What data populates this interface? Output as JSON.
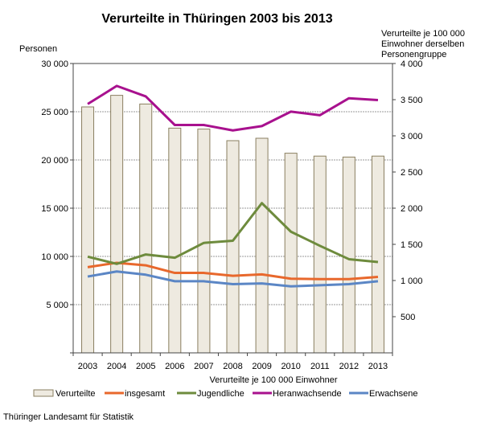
{
  "chart_data": {
    "type": "bar",
    "title": "Verurteilte in Thüringen 2003 bis 2013",
    "ylabel_left": "Personen",
    "ylabel_right": [
      "Verurteilte je 100 000",
      "Einwohner derselben",
      "Personengruppe"
    ],
    "xlabel": "Verurteilte je 100 000 Einwohner",
    "categories": [
      "2003",
      "2004",
      "2005",
      "2006",
      "2007",
      "2008",
      "2009",
      "2010",
      "2011",
      "2012",
      "2013"
    ],
    "ylim_left": [
      0,
      30000
    ],
    "yticks_left": [
      "5 000",
      "10 000",
      "15 000",
      "20 000",
      "25 000",
      "30 000"
    ],
    "yticks_left_values": [
      5000,
      10000,
      15000,
      20000,
      25000,
      30000
    ],
    "ylim_right": [
      0,
      4000
    ],
    "yticks_right": [
      "500",
      "1 000",
      "1 500",
      "2 000",
      "2 500",
      "3 000",
      "3 500",
      "4 000"
    ],
    "yticks_right_values": [
      500,
      1000,
      1500,
      2000,
      2500,
      3000,
      3500,
      4000
    ],
    "grid": true,
    "legend_placement": "bottom",
    "bars": {
      "name": "Verurteilte",
      "axis": "left",
      "color": "#eeeae0",
      "stroke": "#8a7f60",
      "values": [
        25500,
        26700,
        25800,
        23300,
        23200,
        22000,
        22250,
        20700,
        20400,
        20300,
        20400
      ]
    },
    "series": [
      {
        "name": "insgesamt",
        "axis": "right",
        "color": "#e8682c",
        "values": [
          1185,
          1245,
          1210,
          1105,
          1105,
          1065,
          1085,
          1025,
          1020,
          1020,
          1050
        ]
      },
      {
        "name": "Jugendliche",
        "axis": "right",
        "color": "#6e8b3d",
        "values": [
          1330,
          1230,
          1360,
          1315,
          1520,
          1550,
          2070,
          1675,
          1480,
          1295,
          1255
        ]
      },
      {
        "name": "Heranwachsende",
        "axis": "right",
        "color": "#a8118e",
        "values": [
          3440,
          3690,
          3545,
          3150,
          3150,
          3075,
          3135,
          3335,
          3285,
          3520,
          3495
        ]
      },
      {
        "name": "Erwachsene",
        "axis": "right",
        "color": "#5b86c5",
        "values": [
          1055,
          1125,
          1080,
          990,
          990,
          950,
          960,
          920,
          935,
          950,
          990
        ]
      }
    ]
  },
  "source": "Thüringer Landesamt für Statistik"
}
